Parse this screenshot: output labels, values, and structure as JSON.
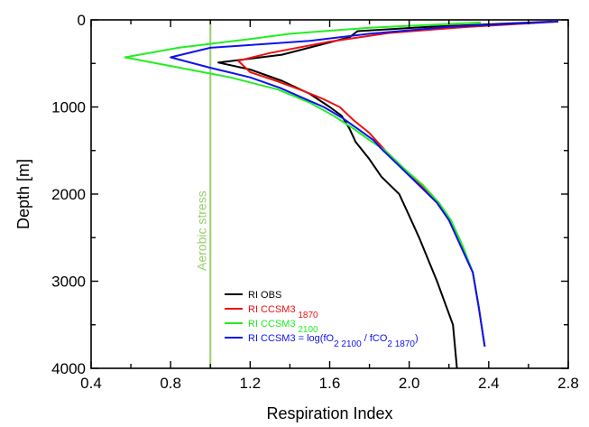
{
  "chart_data": {
    "type": "line",
    "xlabel": "Respiration Index",
    "ylabel": "Depth [m]",
    "xlim": [
      0.4,
      2.8
    ],
    "ylim": [
      0,
      4000
    ],
    "y_inverted": true,
    "x_ticks": [
      "0.4",
      "0.8",
      "1.2",
      "1.6",
      "2.0",
      "2.4",
      "2.8"
    ],
    "y_ticks": [
      "0",
      "1000",
      "2000",
      "3000",
      "4000"
    ],
    "grid": false,
    "legend_position": "bottom-right",
    "threshold": {
      "x": 1.0,
      "label": "Aerobic stress",
      "color": "#9acd6a"
    },
    "series": [
      {
        "label": "RI OBS",
        "color": "#000000",
        "points": [
          [
            2.72,
            20
          ],
          [
            2.1,
            80
          ],
          [
            1.74,
            130
          ],
          [
            1.7,
            200
          ],
          [
            1.36,
            400
          ],
          [
            1.04,
            490
          ],
          [
            1.2,
            570
          ],
          [
            1.36,
            700
          ],
          [
            1.5,
            850
          ],
          [
            1.6,
            1000
          ],
          [
            1.66,
            1100
          ],
          [
            1.7,
            1250
          ],
          [
            1.73,
            1400
          ],
          [
            1.8,
            1600
          ],
          [
            1.86,
            1800
          ],
          [
            1.95,
            2000
          ],
          [
            2.0,
            2250
          ],
          [
            2.05,
            2500
          ],
          [
            2.14,
            3000
          ],
          [
            2.22,
            3500
          ],
          [
            2.24,
            4000
          ]
        ]
      },
      {
        "label": "RI CCSM3",
        "sub": "1870",
        "color": "#ee1111",
        "points": [
          [
            2.75,
            20
          ],
          [
            2.3,
            80
          ],
          [
            1.9,
            150
          ],
          [
            1.6,
            250
          ],
          [
            1.3,
            380
          ],
          [
            1.14,
            470
          ],
          [
            1.2,
            600
          ],
          [
            1.33,
            700
          ],
          [
            1.45,
            800
          ],
          [
            1.56,
            900
          ],
          [
            1.65,
            1000
          ],
          [
            1.72,
            1150
          ],
          [
            1.8,
            1300
          ],
          [
            1.88,
            1500
          ],
          [
            1.97,
            1700
          ],
          [
            2.06,
            1900
          ],
          [
            2.14,
            2100
          ],
          [
            2.2,
            2300
          ],
          [
            2.26,
            2600
          ],
          [
            2.32,
            2900
          ],
          [
            2.35,
            3300
          ],
          [
            2.38,
            3750
          ]
        ]
      },
      {
        "label": "RI CCSM3",
        "sub": "2100",
        "color": "#22ee22",
        "points": [
          [
            2.36,
            30
          ],
          [
            1.8,
            90
          ],
          [
            1.4,
            160
          ],
          [
            1.2,
            220
          ],
          [
            0.84,
            320
          ],
          [
            0.57,
            430
          ],
          [
            0.8,
            530
          ],
          [
            1.1,
            660
          ],
          [
            1.34,
            800
          ],
          [
            1.5,
            950
          ],
          [
            1.62,
            1100
          ],
          [
            1.72,
            1250
          ],
          [
            1.8,
            1380
          ],
          [
            1.88,
            1500
          ],
          [
            1.97,
            1700
          ],
          [
            2.07,
            1900
          ],
          [
            2.15,
            2100
          ],
          [
            2.21,
            2300
          ],
          [
            2.27,
            2600
          ],
          [
            2.32,
            2900
          ],
          [
            2.35,
            3300
          ],
          [
            2.38,
            3750
          ]
        ]
      },
      {
        "label": "RI CCSM3 = log(fO",
        "label_sub1": "2 2100",
        "label_mid": " / fCO",
        "label_sub2": "2 1870",
        "label_end": ")",
        "color": "#1111ee",
        "points": [
          [
            2.75,
            20
          ],
          [
            2.2,
            80
          ],
          [
            1.8,
            160
          ],
          [
            1.5,
            240
          ],
          [
            1.0,
            320
          ],
          [
            0.8,
            430
          ],
          [
            1.0,
            550
          ],
          [
            1.2,
            660
          ],
          [
            1.35,
            780
          ],
          [
            1.47,
            900
          ],
          [
            1.57,
            1000
          ],
          [
            1.66,
            1120
          ],
          [
            1.74,
            1250
          ],
          [
            1.82,
            1380
          ],
          [
            1.86,
            1480
          ],
          [
            1.96,
            1700
          ],
          [
            2.05,
            1900
          ],
          [
            2.14,
            2100
          ],
          [
            2.2,
            2300
          ],
          [
            2.26,
            2600
          ],
          [
            2.32,
            2900
          ],
          [
            2.35,
            3300
          ],
          [
            2.38,
            3750
          ]
        ]
      }
    ]
  }
}
